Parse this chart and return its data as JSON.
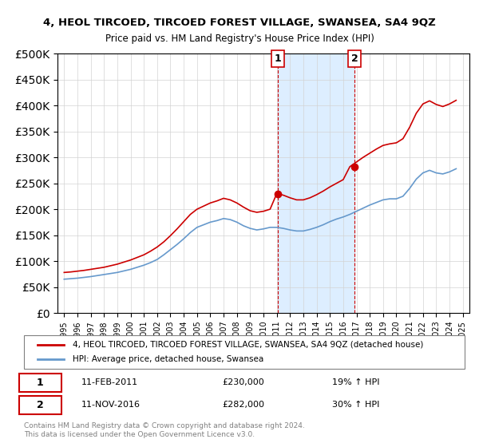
{
  "title": "4, HEOL TIRCOED, TIRCOED FOREST VILLAGE, SWANSEA, SA4 9QZ",
  "subtitle": "Price paid vs. HM Land Registry's House Price Index (HPI)",
  "red_label": "4, HEOL TIRCOED, TIRCOED FOREST VILLAGE, SWANSEA, SA4 9QZ (detached house)",
  "blue_label": "HPI: Average price, detached house, Swansea",
  "annotation1_label": "1",
  "annotation1_date": "11-FEB-2011",
  "annotation1_price": "£230,000",
  "annotation1_hpi": "19% ↑ HPI",
  "annotation2_label": "2",
  "annotation2_date": "11-NOV-2016",
  "annotation2_price": "£282,000",
  "annotation2_hpi": "30% ↑ HPI",
  "footnote": "Contains HM Land Registry data © Crown copyright and database right 2024.\nThis data is licensed under the Open Government Licence v3.0.",
  "highlight_xmin": 2011.1,
  "highlight_xmax": 2017.0,
  "highlight_color": "#ddeeff",
  "red_line_color": "#cc0000",
  "blue_line_color": "#6699cc",
  "ylim": [
    0,
    500000
  ],
  "yticks": [
    0,
    50000,
    100000,
    150000,
    200000,
    250000,
    300000,
    350000,
    400000,
    450000,
    500000
  ],
  "xlim_start": 1994.5,
  "xlim_end": 2025.5,
  "sale1_x": 2011.1,
  "sale1_y": 230000,
  "sale2_x": 2016.85,
  "sale2_y": 282000,
  "hpi_years": [
    1995,
    1995.5,
    1996,
    1996.5,
    1997,
    1997.5,
    1998,
    1998.5,
    1999,
    1999.5,
    2000,
    2000.5,
    2001,
    2001.5,
    2002,
    2002.5,
    2003,
    2003.5,
    2004,
    2004.5,
    2005,
    2005.5,
    2006,
    2006.5,
    2007,
    2007.5,
    2008,
    2008.5,
    2009,
    2009.5,
    2010,
    2010.5,
    2011,
    2011.5,
    2012,
    2012.5,
    2013,
    2013.5,
    2014,
    2014.5,
    2015,
    2015.5,
    2016,
    2016.5,
    2017,
    2017.5,
    2018,
    2018.5,
    2019,
    2019.5,
    2020,
    2020.5,
    2021,
    2021.5,
    2022,
    2022.5,
    2023,
    2023.5,
    2024,
    2024.5
  ],
  "hpi_values": [
    65000,
    66000,
    67000,
    68500,
    70000,
    72000,
    74000,
    76000,
    78000,
    81000,
    84000,
    88000,
    92000,
    97000,
    103000,
    112000,
    122000,
    132000,
    143000,
    155000,
    165000,
    170000,
    175000,
    178000,
    182000,
    180000,
    175000,
    168000,
    163000,
    160000,
    162000,
    165000,
    165000,
    163000,
    160000,
    158000,
    158000,
    161000,
    165000,
    170000,
    176000,
    181000,
    185000,
    190000,
    196000,
    202000,
    208000,
    213000,
    218000,
    220000,
    220000,
    225000,
    240000,
    258000,
    270000,
    275000,
    270000,
    268000,
    272000,
    278000
  ],
  "red_years": [
    1995,
    1995.5,
    1996,
    1996.5,
    1997,
    1997.5,
    1998,
    1998.5,
    1999,
    1999.5,
    2000,
    2000.5,
    2001,
    2001.5,
    2002,
    2002.5,
    2003,
    2003.5,
    2004,
    2004.5,
    2005,
    2005.5,
    2006,
    2006.5,
    2007,
    2007.5,
    2008,
    2008.5,
    2009,
    2009.5,
    2010,
    2010.5,
    2011,
    2011.5,
    2012,
    2012.5,
    2013,
    2013.5,
    2014,
    2014.5,
    2015,
    2015.5,
    2016,
    2016.5,
    2017,
    2017.5,
    2018,
    2018.5,
    2019,
    2019.5,
    2020,
    2020.5,
    2021,
    2021.5,
    2022,
    2022.5,
    2023,
    2023.5,
    2024,
    2024.5
  ],
  "red_values": [
    78000,
    79000,
    80500,
    82000,
    84000,
    86000,
    88000,
    91000,
    94000,
    98000,
    102000,
    107000,
    112000,
    119000,
    127000,
    137000,
    149000,
    162000,
    176000,
    190000,
    200000,
    206000,
    212000,
    216000,
    221000,
    218000,
    212000,
    204000,
    197000,
    194000,
    196000,
    200000,
    230000,
    227000,
    222000,
    218000,
    218000,
    222000,
    228000,
    235000,
    243000,
    250000,
    257000,
    282000,
    291000,
    300000,
    308000,
    316000,
    323000,
    326000,
    328000,
    336000,
    358000,
    385000,
    403000,
    409000,
    402000,
    398000,
    403000,
    410000
  ]
}
